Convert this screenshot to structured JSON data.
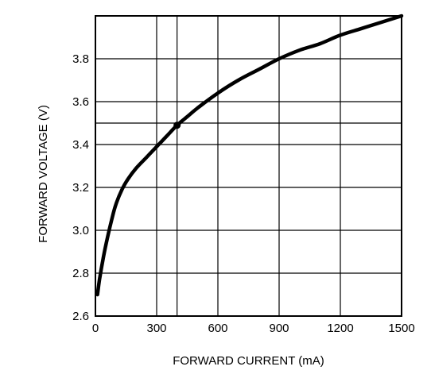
{
  "chart_data": {
    "type": "line",
    "title": "",
    "xlabel": "FORWARD CURRENT (mA)",
    "ylabel": "FORWARD VOLTAGE (V)",
    "xlim": [
      0,
      1500
    ],
    "ylim": [
      2.6,
      4.0
    ],
    "x_ticks": [
      0,
      300,
      600,
      900,
      1200,
      1500
    ],
    "x_tick_labels": [
      "0",
      "300",
      "600",
      "900",
      "1200",
      "1500"
    ],
    "y_ticks": [
      2.6,
      2.8,
      3.0,
      3.2,
      3.4,
      3.6,
      3.8
    ],
    "y_tick_labels": [
      "2.6",
      "2.8",
      "3.0",
      "3.2",
      "3.4",
      "3.6",
      "3.8"
    ],
    "grid": true,
    "extra_gridlines": {
      "x": [
        400
      ],
      "y": [
        3.5
      ]
    },
    "series": [
      {
        "x": [
          10,
          20,
          40,
          60,
          80,
          100,
          130,
          160,
          200,
          250,
          300,
          350,
          400,
          450,
          500,
          600,
          700,
          800,
          900,
          1000,
          1100,
          1200,
          1300,
          1400,
          1500
        ],
        "y": [
          2.7,
          2.77,
          2.88,
          2.97,
          3.05,
          3.12,
          3.19,
          3.24,
          3.29,
          3.34,
          3.39,
          3.44,
          3.49,
          3.53,
          3.57,
          3.64,
          3.7,
          3.75,
          3.8,
          3.84,
          3.87,
          3.91,
          3.94,
          3.97,
          4.0
        ],
        "color": "#000000"
      }
    ],
    "markers": [
      {
        "x": 400,
        "y": 3.49
      }
    ]
  }
}
